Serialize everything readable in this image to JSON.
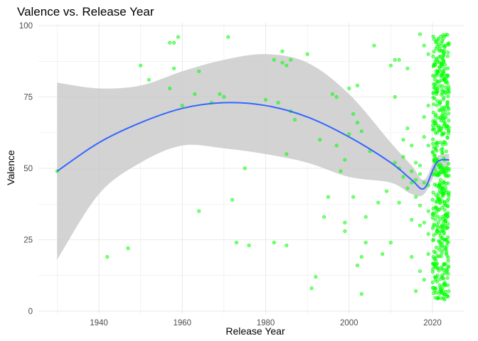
{
  "chart_data": {
    "type": "scatter",
    "title": "Valence vs. Release Year",
    "xlabel": "Release Year",
    "ylabel": "Valence",
    "xlim": [
      1925.5,
      2027.5
    ],
    "ylim": [
      -1,
      101
    ],
    "x_ticks": [
      1940,
      1960,
      1980,
      2000,
      2020
    ],
    "y_ticks": [
      0,
      25,
      50,
      75,
      100
    ],
    "grid": true,
    "legend": "none",
    "colors": {
      "points": "#00ff00",
      "smooth_line": "#3366ff",
      "confidence_band": "#c8c8c8",
      "grid": "#ebebeb"
    },
    "smooth": {
      "x": [
        1930,
        1940,
        1950,
        1960,
        1970,
        1980,
        1990,
        2000,
        2010,
        2015,
        2018,
        2021,
        2024
      ],
      "y": [
        49,
        59,
        66,
        71,
        73,
        72,
        68,
        61,
        52,
        46,
        43,
        52,
        53
      ],
      "lower": [
        18,
        41,
        52,
        58,
        57,
        55,
        52,
        47,
        45,
        41,
        41,
        49,
        51
      ],
      "upper": [
        80,
        78,
        79,
        84,
        88,
        90,
        87,
        76,
        59,
        51,
        46,
        54,
        55
      ]
    },
    "points": [
      [
        1930,
        49
      ],
      [
        1942,
        19
      ],
      [
        1947,
        22
      ],
      [
        1950,
        86
      ],
      [
        1952,
        81
      ],
      [
        1957,
        94
      ],
      [
        1957,
        78
      ],
      [
        1958,
        94
      ],
      [
        1958,
        85
      ],
      [
        1959,
        96
      ],
      [
        1960,
        72
      ],
      [
        1963,
        76
      ],
      [
        1964,
        84
      ],
      [
        1964,
        35
      ],
      [
        1967,
        73
      ],
      [
        1969,
        76
      ],
      [
        1970,
        75
      ],
      [
        1971,
        96
      ],
      [
        1972,
        39
      ],
      [
        1973,
        24
      ],
      [
        1975,
        50
      ],
      [
        1976,
        23
      ],
      [
        1980,
        74
      ],
      [
        1982,
        88
      ],
      [
        1982,
        24
      ],
      [
        1983,
        73
      ],
      [
        1984,
        91
      ],
      [
        1984,
        87
      ],
      [
        1985,
        55
      ],
      [
        1985,
        86
      ],
      [
        1985,
        23
      ],
      [
        1986,
        88
      ],
      [
        1986,
        70
      ],
      [
        1987,
        67
      ],
      [
        1990,
        90
      ],
      [
        1991,
        8
      ],
      [
        1992,
        12
      ],
      [
        1993,
        60
      ],
      [
        1994,
        33
      ],
      [
        1995,
        40
      ],
      [
        1996,
        76
      ],
      [
        1997,
        75
      ],
      [
        1997,
        58
      ],
      [
        1998,
        49
      ],
      [
        1999,
        31
      ],
      [
        1999,
        28
      ],
      [
        1999,
        53
      ],
      [
        2000,
        62
      ],
      [
        2000,
        78
      ],
      [
        2001,
        40
      ],
      [
        2001,
        69
      ],
      [
        2002,
        16
      ],
      [
        2002,
        66
      ],
      [
        2002,
        79
      ],
      [
        2003,
        6
      ],
      [
        2003,
        63
      ],
      [
        2003,
        19
      ],
      [
        2004,
        24
      ],
      [
        2004,
        33
      ],
      [
        2005,
        56
      ],
      [
        2006,
        93
      ],
      [
        2007,
        38
      ],
      [
        2008,
        20
      ],
      [
        2009,
        42
      ],
      [
        2010,
        24
      ],
      [
        2010,
        86
      ],
      [
        2011,
        88
      ],
      [
        2011,
        75
      ],
      [
        2011,
        52
      ],
      [
        2012,
        88
      ],
      [
        2012,
        50
      ],
      [
        2012,
        38
      ],
      [
        2013,
        47
      ],
      [
        2013,
        54
      ],
      [
        2013,
        60
      ],
      [
        2014,
        64
      ],
      [
        2014,
        43
      ],
      [
        2014,
        85
      ],
      [
        2015,
        49
      ],
      [
        2015,
        45
      ],
      [
        2015,
        58
      ],
      [
        2015,
        19
      ],
      [
        2015,
        32
      ],
      [
        2016,
        7
      ],
      [
        2016,
        40
      ],
      [
        2016,
        52
      ],
      [
        2016,
        46
      ],
      [
        2017,
        97
      ],
      [
        2017,
        48
      ],
      [
        2017,
        51
      ],
      [
        2017,
        37
      ],
      [
        2017,
        30
      ],
      [
        2017,
        14
      ],
      [
        2018,
        45
      ],
      [
        2018,
        31
      ],
      [
        2018,
        61
      ],
      [
        2018,
        68
      ],
      [
        2018,
        93
      ],
      [
        2018,
        11
      ],
      [
        2019,
        44
      ],
      [
        2019,
        72
      ],
      [
        2019,
        90
      ],
      [
        2019,
        27
      ],
      [
        2019,
        58
      ],
      [
        2019,
        20
      ],
      [
        2019,
        35
      ]
    ],
    "dense_column": {
      "x_range": [
        2020,
        2024
      ],
      "y_range": [
        4,
        97
      ],
      "point_count": 500
    }
  }
}
